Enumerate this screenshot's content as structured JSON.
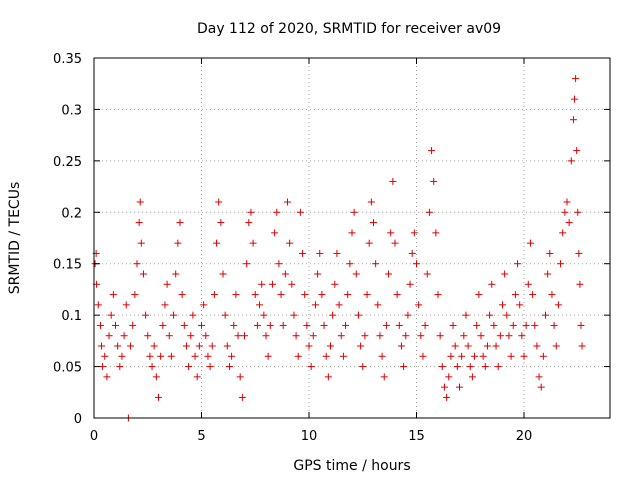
{
  "chart_data": {
    "type": "scatter",
    "title": "Day 112 of 2020, SRMTID for receiver av09",
    "xlabel": "GPS time / hours",
    "ylabel": "SRMTID / TECUs",
    "xlim": [
      0,
      24
    ],
    "ylim": [
      0,
      0.35
    ],
    "xticks": [
      0,
      5,
      10,
      15,
      20
    ],
    "xtick_labels": [
      "0",
      "5",
      "10",
      "15",
      "20"
    ],
    "yticks": [
      0,
      0.05,
      0.1,
      0.15,
      0.2,
      0.25,
      0.3,
      0.35
    ],
    "ytick_labels": [
      "0",
      "0.05",
      "0.1",
      "0.15",
      "0.2",
      "0.25",
      "0.3",
      "0.35"
    ],
    "grid": true,
    "marker": "plus",
    "color": "#e00000",
    "series": [
      {
        "name": "SRMTID",
        "points": [
          [
            0.05,
            0.15
          ],
          [
            0.1,
            0.16
          ],
          [
            0.12,
            0.13
          ],
          [
            0.2,
            0.11
          ],
          [
            0.3,
            0.09
          ],
          [
            0.35,
            0.07
          ],
          [
            0.4,
            0.05
          ],
          [
            0.5,
            0.06
          ],
          [
            0.6,
            0.04
          ],
          [
            0.7,
            0.08
          ],
          [
            0.8,
            0.1
          ],
          [
            0.9,
            0.12
          ],
          [
            1.0,
            0.09
          ],
          [
            1.1,
            0.07
          ],
          [
            1.2,
            0.05
          ],
          [
            1.3,
            0.06
          ],
          [
            1.4,
            0.08
          ],
          [
            1.5,
            0.11
          ],
          [
            1.6,
            0.0
          ],
          [
            1.7,
            0.07
          ],
          [
            1.8,
            0.09
          ],
          [
            1.9,
            0.12
          ],
          [
            2.0,
            0.15
          ],
          [
            2.1,
            0.19
          ],
          [
            2.15,
            0.21
          ],
          [
            2.2,
            0.17
          ],
          [
            2.3,
            0.14
          ],
          [
            2.4,
            0.1
          ],
          [
            2.5,
            0.08
          ],
          [
            2.6,
            0.06
          ],
          [
            2.7,
            0.05
          ],
          [
            2.8,
            0.07
          ],
          [
            2.9,
            0.04
          ],
          [
            3.0,
            0.02
          ],
          [
            3.1,
            0.06
          ],
          [
            3.2,
            0.09
          ],
          [
            3.3,
            0.11
          ],
          [
            3.4,
            0.13
          ],
          [
            3.5,
            0.08
          ],
          [
            3.6,
            0.06
          ],
          [
            3.7,
            0.1
          ],
          [
            3.8,
            0.14
          ],
          [
            3.9,
            0.17
          ],
          [
            4.0,
            0.19
          ],
          [
            4.1,
            0.12
          ],
          [
            4.2,
            0.09
          ],
          [
            4.3,
            0.07
          ],
          [
            4.4,
            0.05
          ],
          [
            4.5,
            0.08
          ],
          [
            4.6,
            0.1
          ],
          [
            4.7,
            0.06
          ],
          [
            4.8,
            0.04
          ],
          [
            4.9,
            0.07
          ],
          [
            5.0,
            0.09
          ],
          [
            5.1,
            0.11
          ],
          [
            5.2,
            0.08
          ],
          [
            5.3,
            0.06
          ],
          [
            5.4,
            0.05
          ],
          [
            5.5,
            0.07
          ],
          [
            5.6,
            0.12
          ],
          [
            5.7,
            0.17
          ],
          [
            5.8,
            0.21
          ],
          [
            5.9,
            0.19
          ],
          [
            6.0,
            0.14
          ],
          [
            6.1,
            0.1
          ],
          [
            6.2,
            0.07
          ],
          [
            6.3,
            0.05
          ],
          [
            6.4,
            0.06
          ],
          [
            6.5,
            0.09
          ],
          [
            6.6,
            0.12
          ],
          [
            6.7,
            0.08
          ],
          [
            6.8,
            0.04
          ],
          [
            6.9,
            0.02
          ],
          [
            7.0,
            0.08
          ],
          [
            7.1,
            0.15
          ],
          [
            7.2,
            0.19
          ],
          [
            7.3,
            0.2
          ],
          [
            7.4,
            0.17
          ],
          [
            7.5,
            0.12
          ],
          [
            7.6,
            0.09
          ],
          [
            7.7,
            0.11
          ],
          [
            7.8,
            0.13
          ],
          [
            7.9,
            0.1
          ],
          [
            8.0,
            0.08
          ],
          [
            8.1,
            0.06
          ],
          [
            8.2,
            0.09
          ],
          [
            8.3,
            0.13
          ],
          [
            8.4,
            0.18
          ],
          [
            8.5,
            0.2
          ],
          [
            8.6,
            0.15
          ],
          [
            8.7,
            0.12
          ],
          [
            8.8,
            0.09
          ],
          [
            8.9,
            0.14
          ],
          [
            9.0,
            0.21
          ],
          [
            9.1,
            0.17
          ],
          [
            9.2,
            0.13
          ],
          [
            9.3,
            0.1
          ],
          [
            9.4,
            0.08
          ],
          [
            9.5,
            0.06
          ],
          [
            9.6,
            0.2
          ],
          [
            9.7,
            0.16
          ],
          [
            9.8,
            0.12
          ],
          [
            9.9,
            0.09
          ],
          [
            10.0,
            0.07
          ],
          [
            10.1,
            0.05
          ],
          [
            10.2,
            0.08
          ],
          [
            10.3,
            0.11
          ],
          [
            10.4,
            0.14
          ],
          [
            10.5,
            0.16
          ],
          [
            10.6,
            0.12
          ],
          [
            10.7,
            0.09
          ],
          [
            10.8,
            0.06
          ],
          [
            10.9,
            0.04
          ],
          [
            11.0,
            0.07
          ],
          [
            11.1,
            0.1
          ],
          [
            11.2,
            0.13
          ],
          [
            11.3,
            0.16
          ],
          [
            11.4,
            0.11
          ],
          [
            11.5,
            0.08
          ],
          [
            11.6,
            0.06
          ],
          [
            11.7,
            0.09
          ],
          [
            11.8,
            0.12
          ],
          [
            11.9,
            0.15
          ],
          [
            12.0,
            0.18
          ],
          [
            12.1,
            0.2
          ],
          [
            12.2,
            0.14
          ],
          [
            12.3,
            0.1
          ],
          [
            12.4,
            0.07
          ],
          [
            12.5,
            0.05
          ],
          [
            12.6,
            0.08
          ],
          [
            12.7,
            0.12
          ],
          [
            12.8,
            0.17
          ],
          [
            12.9,
            0.21
          ],
          [
            13.0,
            0.19
          ],
          [
            13.1,
            0.15
          ],
          [
            13.2,
            0.11
          ],
          [
            13.3,
            0.08
          ],
          [
            13.4,
            0.06
          ],
          [
            13.5,
            0.04
          ],
          [
            13.6,
            0.09
          ],
          [
            13.7,
            0.14
          ],
          [
            13.8,
            0.18
          ],
          [
            13.9,
            0.23
          ],
          [
            14.0,
            0.17
          ],
          [
            14.1,
            0.12
          ],
          [
            14.2,
            0.09
          ],
          [
            14.3,
            0.07
          ],
          [
            14.4,
            0.05
          ],
          [
            14.5,
            0.08
          ],
          [
            14.6,
            0.1
          ],
          [
            14.7,
            0.13
          ],
          [
            14.8,
            0.16
          ],
          [
            14.9,
            0.18
          ],
          [
            15.0,
            0.15
          ],
          [
            15.1,
            0.11
          ],
          [
            15.2,
            0.08
          ],
          [
            15.3,
            0.06
          ],
          [
            15.4,
            0.09
          ],
          [
            15.5,
            0.14
          ],
          [
            15.6,
            0.2
          ],
          [
            15.7,
            0.26
          ],
          [
            15.8,
            0.23
          ],
          [
            15.9,
            0.18
          ],
          [
            16.0,
            0.12
          ],
          [
            16.1,
            0.08
          ],
          [
            16.2,
            0.05
          ],
          [
            16.3,
            0.03
          ],
          [
            16.4,
            0.02
          ],
          [
            16.5,
            0.04
          ],
          [
            16.6,
            0.06
          ],
          [
            16.7,
            0.09
          ],
          [
            16.8,
            0.07
          ],
          [
            16.9,
            0.05
          ],
          [
            17.0,
            0.03
          ],
          [
            17.1,
            0.06
          ],
          [
            17.2,
            0.08
          ],
          [
            17.3,
            0.1
          ],
          [
            17.4,
            0.07
          ],
          [
            17.5,
            0.05
          ],
          [
            17.6,
            0.04
          ],
          [
            17.7,
            0.06
          ],
          [
            17.8,
            0.09
          ],
          [
            17.9,
            0.12
          ],
          [
            18.0,
            0.08
          ],
          [
            18.1,
            0.06
          ],
          [
            18.2,
            0.05
          ],
          [
            18.3,
            0.07
          ],
          [
            18.4,
            0.1
          ],
          [
            18.5,
            0.13
          ],
          [
            18.6,
            0.09
          ],
          [
            18.7,
            0.07
          ],
          [
            18.8,
            0.05
          ],
          [
            18.9,
            0.08
          ],
          [
            19.0,
            0.11
          ],
          [
            19.1,
            0.14
          ],
          [
            19.2,
            0.1
          ],
          [
            19.3,
            0.08
          ],
          [
            19.4,
            0.06
          ],
          [
            19.5,
            0.09
          ],
          [
            19.6,
            0.12
          ],
          [
            19.7,
            0.15
          ],
          [
            19.8,
            0.11
          ],
          [
            19.9,
            0.08
          ],
          [
            20.0,
            0.06
          ],
          [
            20.1,
            0.09
          ],
          [
            20.2,
            0.13
          ],
          [
            20.3,
            0.17
          ],
          [
            20.4,
            0.12
          ],
          [
            20.5,
            0.09
          ],
          [
            20.6,
            0.07
          ],
          [
            20.7,
            0.04
          ],
          [
            20.8,
            0.03
          ],
          [
            20.9,
            0.06
          ],
          [
            21.0,
            0.1
          ],
          [
            21.1,
            0.14
          ],
          [
            21.2,
            0.16
          ],
          [
            21.3,
            0.12
          ],
          [
            21.4,
            0.09
          ],
          [
            21.5,
            0.07
          ],
          [
            21.6,
            0.11
          ],
          [
            21.7,
            0.15
          ],
          [
            21.8,
            0.18
          ],
          [
            21.9,
            0.2
          ],
          [
            22.0,
            0.21
          ],
          [
            22.1,
            0.19
          ],
          [
            22.2,
            0.25
          ],
          [
            22.3,
            0.29
          ],
          [
            22.35,
            0.31
          ],
          [
            22.4,
            0.33
          ],
          [
            22.45,
            0.26
          ],
          [
            22.5,
            0.2
          ],
          [
            22.55,
            0.16
          ],
          [
            22.6,
            0.13
          ],
          [
            22.65,
            0.09
          ],
          [
            22.7,
            0.07
          ]
        ]
      }
    ]
  }
}
